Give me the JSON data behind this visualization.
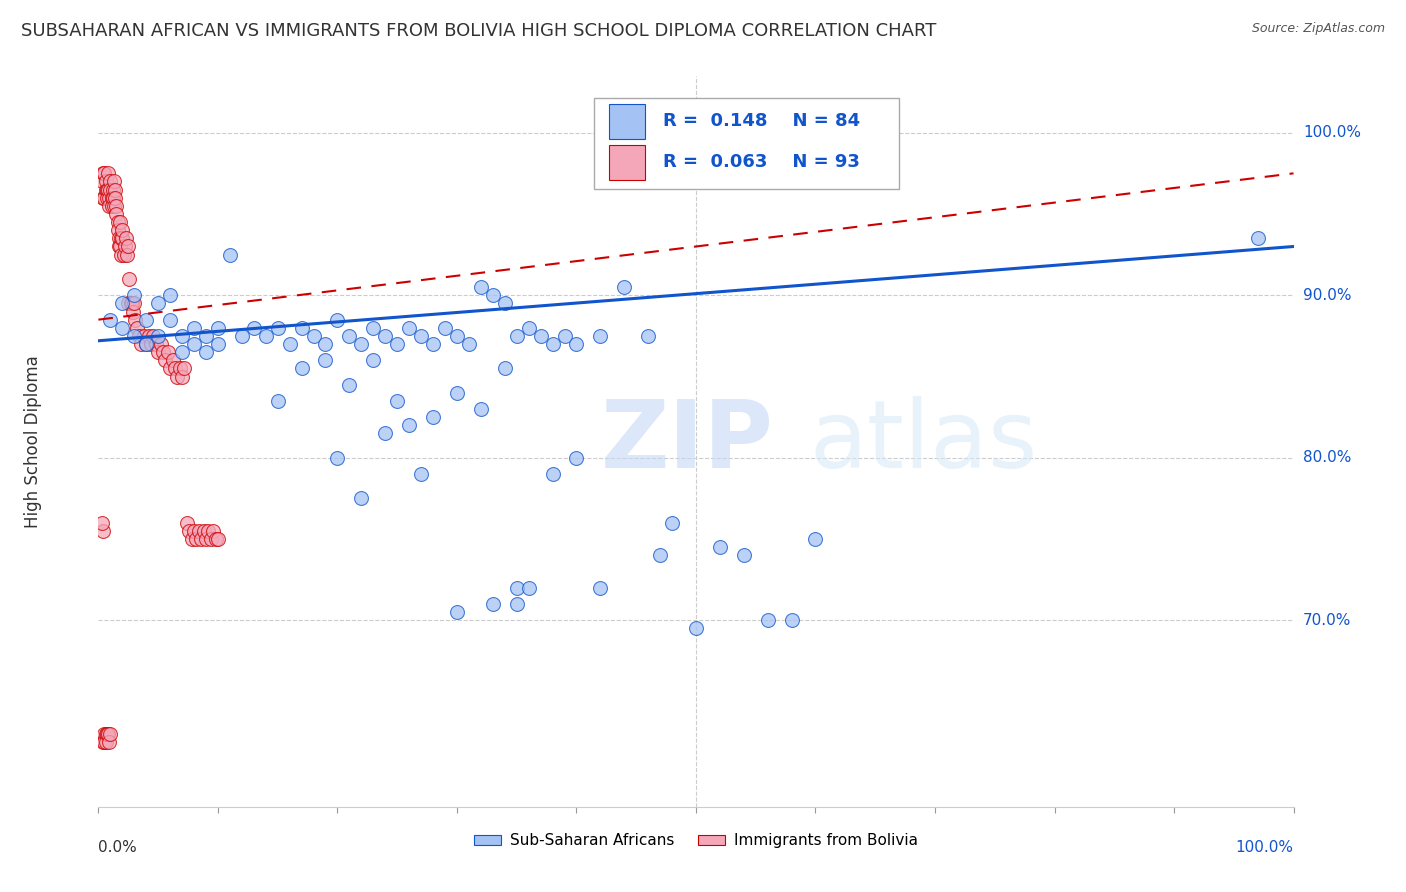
{
  "title": "SUBSAHARAN AFRICAN VS IMMIGRANTS FROM BOLIVIA HIGH SCHOOL DIPLOMA CORRELATION CHART",
  "source": "Source: ZipAtlas.com",
  "ylabel": "High School Diploma",
  "ytick_labels": [
    "100.0%",
    "90.0%",
    "80.0%",
    "70.0%"
  ],
  "ytick_values": [
    1.0,
    0.9,
    0.8,
    0.7
  ],
  "xlim": [
    0.0,
    1.0
  ],
  "ylim": [
    0.585,
    1.035
  ],
  "legend_label1": "Sub-Saharan Africans",
  "legend_label2": "Immigrants from Bolivia",
  "R1": 0.148,
  "N1": 84,
  "R2": 0.063,
  "N2": 93,
  "blue_color": "#a4c2f4",
  "pink_color": "#f4a7b9",
  "line_blue": "#1155cc",
  "line_pink": "#cc0000",
  "watermark": "ZIPatlas",
  "blue_x": [
    0.01,
    0.02,
    0.02,
    0.03,
    0.03,
    0.04,
    0.04,
    0.05,
    0.05,
    0.06,
    0.06,
    0.07,
    0.07,
    0.08,
    0.08,
    0.09,
    0.09,
    0.1,
    0.1,
    0.11,
    0.12,
    0.13,
    0.14,
    0.15,
    0.16,
    0.17,
    0.18,
    0.19,
    0.2,
    0.21,
    0.22,
    0.23,
    0.24,
    0.25,
    0.26,
    0.27,
    0.28,
    0.29,
    0.3,
    0.31,
    0.32,
    0.33,
    0.34,
    0.35,
    0.36,
    0.37,
    0.38,
    0.39,
    0.4,
    0.42,
    0.44,
    0.46,
    0.47,
    0.48,
    0.5,
    0.52,
    0.54,
    0.56,
    0.58,
    0.6,
    0.2,
    0.22,
    0.24,
    0.26,
    0.28,
    0.3,
    0.32,
    0.34,
    0.15,
    0.17,
    0.19,
    0.21,
    0.23,
    0.25,
    0.35,
    0.38,
    0.4,
    0.42,
    0.97,
    0.35,
    0.27,
    0.3,
    0.33,
    0.36
  ],
  "blue_y": [
    0.885,
    0.88,
    0.895,
    0.875,
    0.9,
    0.885,
    0.87,
    0.895,
    0.875,
    0.9,
    0.885,
    0.875,
    0.865,
    0.88,
    0.87,
    0.875,
    0.865,
    0.88,
    0.87,
    0.925,
    0.875,
    0.88,
    0.875,
    0.88,
    0.87,
    0.88,
    0.875,
    0.87,
    0.885,
    0.875,
    0.87,
    0.88,
    0.875,
    0.87,
    0.88,
    0.875,
    0.87,
    0.88,
    0.875,
    0.87,
    0.905,
    0.9,
    0.895,
    0.875,
    0.88,
    0.875,
    0.87,
    0.875,
    0.87,
    0.875,
    0.905,
    0.875,
    0.74,
    0.76,
    0.695,
    0.745,
    0.74,
    0.7,
    0.7,
    0.75,
    0.8,
    0.775,
    0.815,
    0.82,
    0.825,
    0.84,
    0.83,
    0.855,
    0.835,
    0.855,
    0.86,
    0.845,
    0.86,
    0.835,
    0.72,
    0.79,
    0.8,
    0.72,
    0.935,
    0.71,
    0.79,
    0.705,
    0.71,
    0.72
  ],
  "pink_x": [
    0.003,
    0.004,
    0.004,
    0.005,
    0.005,
    0.006,
    0.006,
    0.007,
    0.007,
    0.008,
    0.008,
    0.009,
    0.009,
    0.01,
    0.01,
    0.011,
    0.011,
    0.012,
    0.012,
    0.013,
    0.013,
    0.014,
    0.014,
    0.015,
    0.015,
    0.016,
    0.016,
    0.017,
    0.017,
    0.018,
    0.018,
    0.019,
    0.019,
    0.02,
    0.02,
    0.021,
    0.022,
    0.023,
    0.024,
    0.025,
    0.025,
    0.026,
    0.027,
    0.028,
    0.029,
    0.03,
    0.031,
    0.032,
    0.034,
    0.036,
    0.038,
    0.04,
    0.042,
    0.044,
    0.046,
    0.048,
    0.05,
    0.052,
    0.054,
    0.056,
    0.058,
    0.06,
    0.062,
    0.064,
    0.066,
    0.068,
    0.07,
    0.072,
    0.074,
    0.076,
    0.078,
    0.08,
    0.082,
    0.084,
    0.086,
    0.088,
    0.09,
    0.092,
    0.094,
    0.096,
    0.098,
    0.1,
    0.004,
    0.004,
    0.005,
    0.005,
    0.006,
    0.006,
    0.007,
    0.008,
    0.009,
    0.01,
    0.003
  ],
  "pink_y": [
    0.97,
    0.96,
    0.975,
    0.96,
    0.975,
    0.965,
    0.97,
    0.965,
    0.96,
    0.975,
    0.965,
    0.96,
    0.955,
    0.97,
    0.965,
    0.96,
    0.955,
    0.965,
    0.96,
    0.97,
    0.955,
    0.965,
    0.96,
    0.955,
    0.95,
    0.945,
    0.94,
    0.935,
    0.93,
    0.945,
    0.93,
    0.935,
    0.925,
    0.935,
    0.94,
    0.925,
    0.93,
    0.935,
    0.925,
    0.93,
    0.895,
    0.91,
    0.895,
    0.895,
    0.89,
    0.895,
    0.885,
    0.88,
    0.875,
    0.87,
    0.875,
    0.87,
    0.875,
    0.87,
    0.875,
    0.87,
    0.865,
    0.87,
    0.865,
    0.86,
    0.865,
    0.855,
    0.86,
    0.855,
    0.85,
    0.855,
    0.85,
    0.855,
    0.76,
    0.755,
    0.75,
    0.755,
    0.75,
    0.755,
    0.75,
    0.755,
    0.75,
    0.755,
    0.75,
    0.755,
    0.75,
    0.75,
    0.755,
    0.625,
    0.63,
    0.625,
    0.63,
    0.625,
    0.63,
    0.63,
    0.625,
    0.63,
    0.76
  ]
}
